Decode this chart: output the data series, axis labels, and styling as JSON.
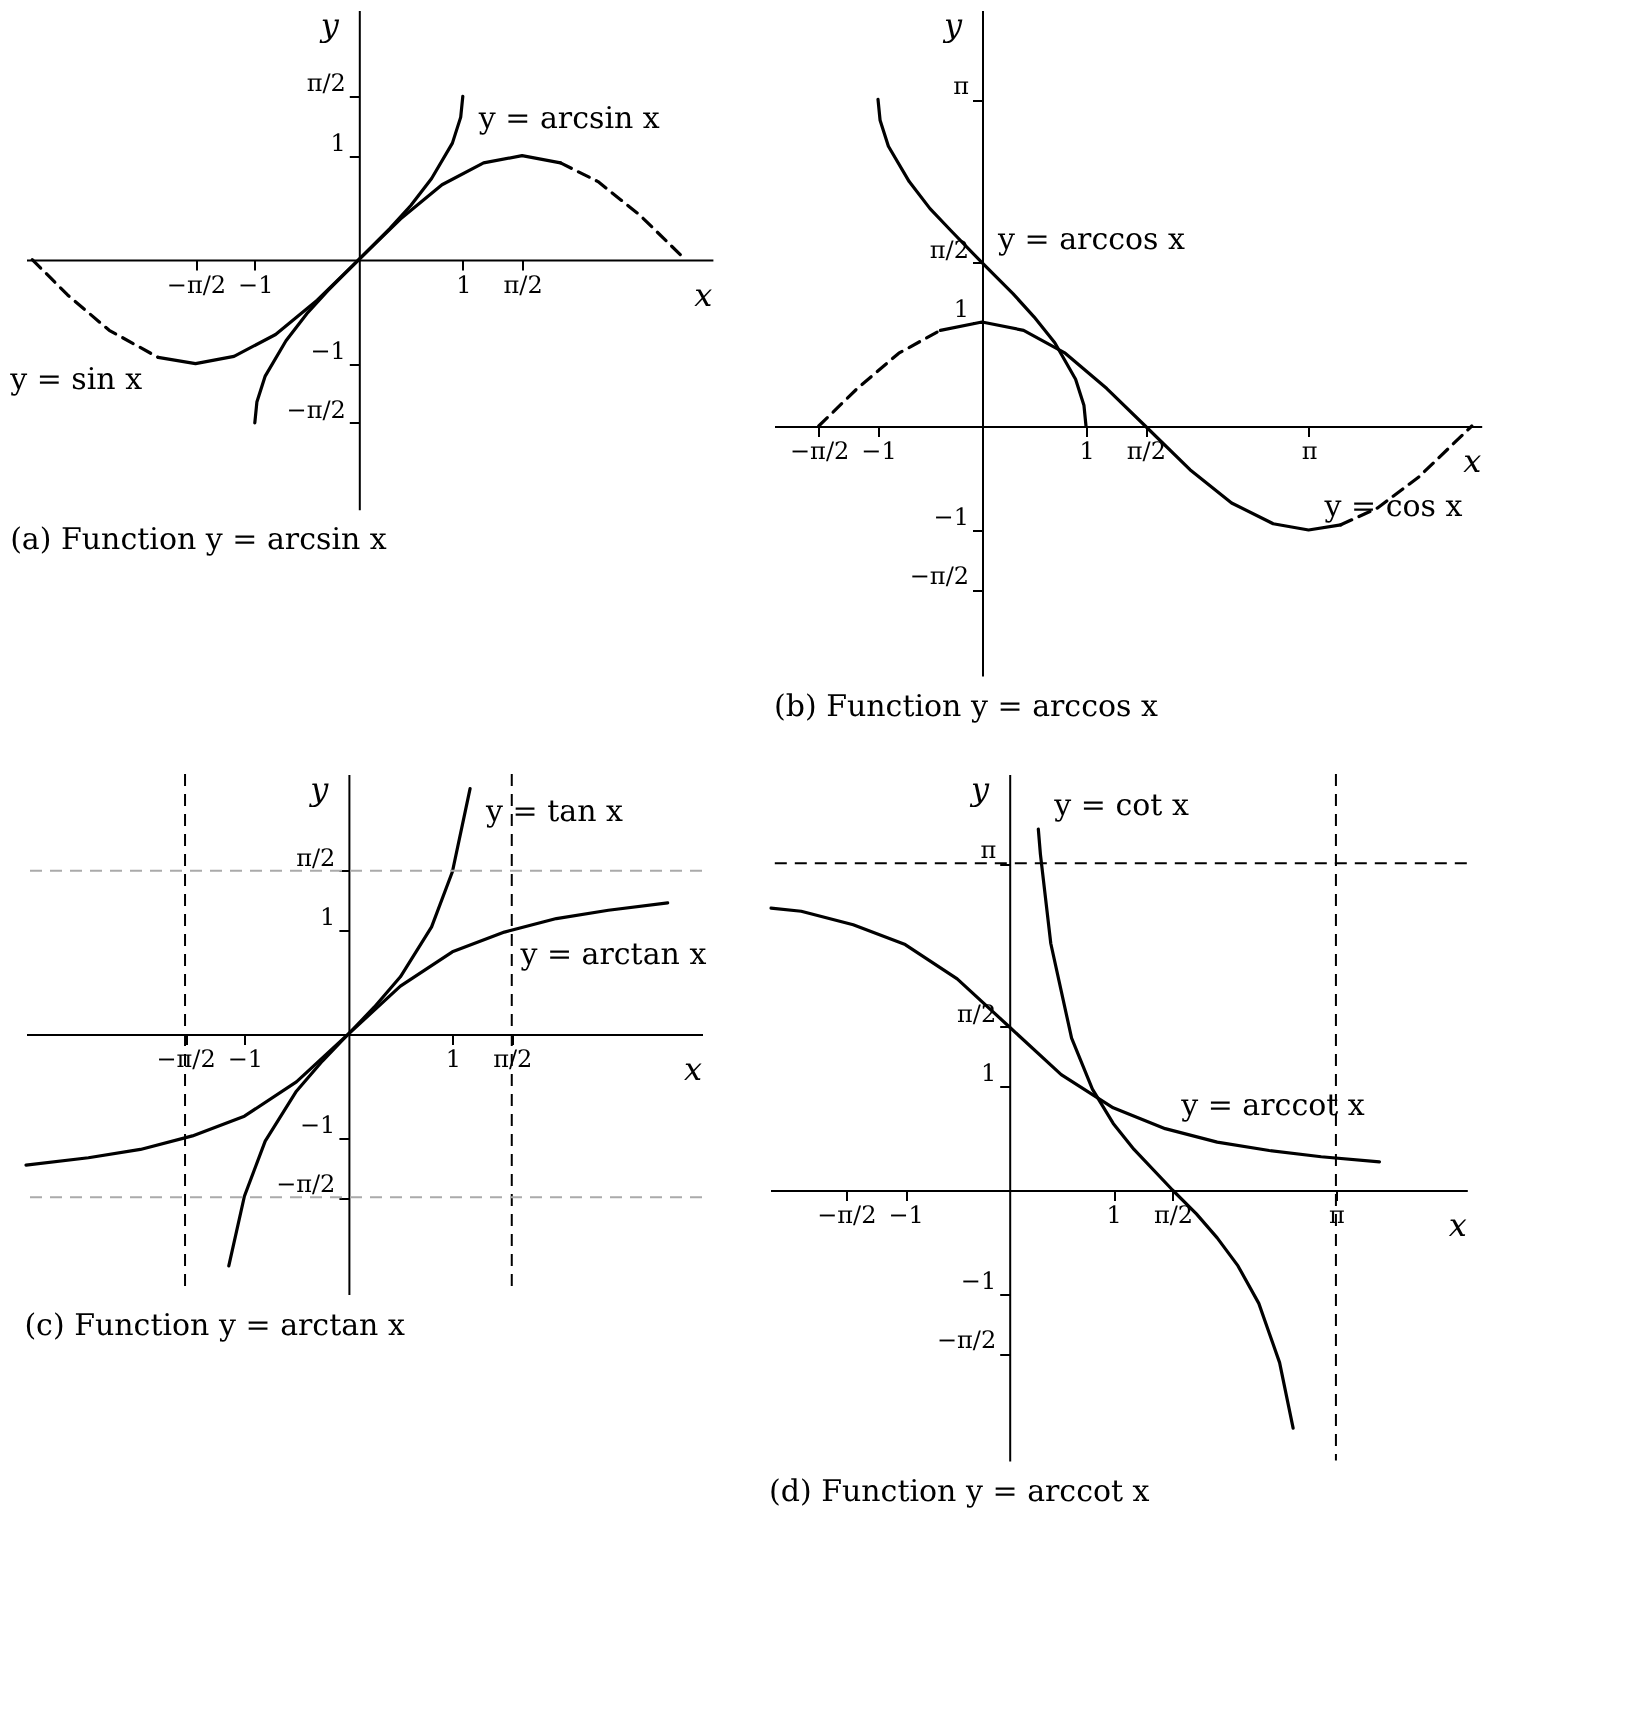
{
  "chart_data": [
    {
      "type": "line",
      "title": "(a) Function y = arcsin x",
      "xlabel": "x",
      "ylabel": "y",
      "xlim": [
        -3.2,
        3.4
      ],
      "ylim": [
        -2.4,
        2.4
      ],
      "grid": false,
      "xticks": [
        {
          "value": -1.5708,
          "label": "−π/2"
        },
        {
          "value": -1,
          "label": "−1"
        },
        1,
        {
          "value": 1.5708,
          "label": "π/2"
        }
      ],
      "yticks": [
        {
          "value": 1.5708,
          "label": "π/2"
        },
        1,
        {
          "value": -1,
          "label": "−1"
        },
        {
          "value": -1.5708,
          "label": "−π/2"
        }
      ],
      "annotations": [
        {
          "text": "y = arcsin x",
          "x": 1,
          "y": 1.57
        },
        {
          "text": "y = sin x",
          "x": -1.93,
          "y": -0.94
        }
      ],
      "series": [
        {
          "color": "#000000",
          "line_style": "dashed",
          "x": [
            -3.14,
            -2.8,
            -2.4,
            -1.93
          ],
          "values": [
            0,
            -0.34,
            -0.68,
            -0.94
          ]
        },
        {
          "color": "#000000",
          "line_style": "solid",
          "x": [
            -1.93,
            -1.57,
            -1.2,
            -0.8,
            -0.4,
            0,
            0.4,
            0.8,
            1.2,
            1.57,
            1.94
          ],
          "values": [
            -0.94,
            -1,
            -0.93,
            -0.72,
            -0.39,
            0,
            0.39,
            0.72,
            0.93,
            1,
            0.93
          ]
        },
        {
          "color": "#000000",
          "line_style": "dashed",
          "x": [
            1.94,
            2.3,
            2.7,
            3.14
          ],
          "values": [
            0.93,
            0.75,
            0.43,
            0
          ]
        },
        {
          "color": "#000000",
          "line_style": "solid",
          "x": [
            -1,
            -0.98,
            -0.9,
            -0.7,
            -0.5,
            -0.3,
            0,
            0.3,
            0.5,
            0.7,
            0.9,
            0.98,
            1
          ],
          "values": [
            -1.57,
            -1.37,
            -1.12,
            -0.78,
            -0.52,
            -0.3,
            0,
            0.3,
            0.52,
            0.78,
            1.12,
            1.37,
            1.57
          ]
        }
      ]
    },
    {
      "type": "line",
      "title": "(b) Function y = arccos x",
      "xlabel": "x",
      "ylabel": "y",
      "xlim": [
        -2.0,
        4.8
      ],
      "ylim": [
        -2.4,
        4.0
      ],
      "grid": false,
      "xticks": [
        {
          "value": -1.5708,
          "label": "−π/2"
        },
        {
          "value": -1,
          "label": "−1"
        },
        1,
        {
          "value": 1.5708,
          "label": "π/2"
        },
        {
          "value": 3.1416,
          "label": "π"
        }
      ],
      "yticks": [
        {
          "value": 3.1416,
          "label": "π"
        },
        {
          "value": 1.5708,
          "label": "π/2"
        },
        1,
        {
          "value": -1,
          "label": "−1"
        },
        {
          "value": -1.5708,
          "label": "−π/2"
        }
      ],
      "annotations": [
        {
          "text": "y = arccos x",
          "x": 0,
          "y": 1.57
        },
        {
          "text": "y = cos x",
          "x": 3.14,
          "y": -1
        }
      ],
      "series": [
        {
          "color": "#000000",
          "line_style": "dashed",
          "x": [
            -1.57,
            -1.2,
            -0.8,
            -0.4
          ],
          "values": [
            0,
            0.36,
            0.7,
            0.92
          ]
        },
        {
          "color": "#000000",
          "line_style": "solid",
          "x": [
            -0.4,
            0,
            0.4,
            0.8,
            1.2,
            1.57,
            2.0,
            2.4,
            2.8,
            3.14,
            3.45
          ],
          "values": [
            0.92,
            1,
            0.92,
            0.7,
            0.36,
            0,
            -0.42,
            -0.74,
            -0.94,
            -1,
            -0.95
          ]
        },
        {
          "color": "#000000",
          "line_style": "dashed",
          "x": [
            3.45,
            3.8,
            4.2,
            4.71
          ],
          "values": [
            -0.95,
            -0.79,
            -0.49,
            0
          ]
        },
        {
          "color": "#000000",
          "line_style": "solid",
          "x": [
            -1,
            -0.98,
            -0.9,
            -0.7,
            -0.5,
            -0.3,
            0,
            0.3,
            0.5,
            0.7,
            0.9,
            0.98,
            1
          ],
          "values": [
            3.14,
            2.94,
            2.69,
            2.35,
            2.09,
            1.88,
            1.57,
            1.27,
            1.05,
            0.8,
            0.45,
            0.2,
            0
          ]
        }
      ]
    },
    {
      "type": "line",
      "title": "(c) Function y = arctan x",
      "xlabel": "x",
      "ylabel": "y",
      "xlim": [
        -3.1,
        3.4
      ],
      "ylim": [
        -2.5,
        2.5
      ],
      "grid": false,
      "xticks": [
        {
          "value": -1.5708,
          "label": "−π/2"
        },
        {
          "value": -1,
          "label": "−1"
        },
        1,
        {
          "value": 1.5708,
          "label": "π/2"
        }
      ],
      "yticks": [
        {
          "value": 1.5708,
          "label": "π/2"
        },
        1,
        {
          "value": -1,
          "label": "−1"
        },
        {
          "value": -1.5708,
          "label": "−π/2"
        }
      ],
      "annotations": [
        {
          "text": "y = tan x",
          "x": 1.17,
          "y": 2.36
        },
        {
          "text": "y = arctan x",
          "x": 1.5,
          "y": 0.98
        }
      ],
      "ref_lines": [
        {
          "axis": "x",
          "value": -1.5708,
          "color": "#000000",
          "line_style": "dashed"
        },
        {
          "axis": "x",
          "value": 1.5708,
          "color": "#000000",
          "line_style": "dashed"
        },
        {
          "axis": "y",
          "value": 1.5708,
          "color": "#aaaaaa",
          "line_style": "dashed"
        },
        {
          "axis": "y",
          "value": -1.5708,
          "color": "#aaaaaa",
          "line_style": "dashed"
        }
      ],
      "series": [
        {
          "color": "#000000",
          "line_style": "solid",
          "x": [
            -1.15,
            -1.0,
            -0.8,
            -0.5,
            -0.25,
            0,
            0.25,
            0.5,
            0.8,
            1.0,
            1.17
          ],
          "values": [
            -2.23,
            -1.56,
            -1.03,
            -0.55,
            -0.26,
            0,
            0.26,
            0.55,
            1.03,
            1.56,
            2.36
          ]
        },
        {
          "color": "#000000",
          "line_style": "solid",
          "x": [
            -3.1,
            -2.5,
            -2,
            -1.5,
            -1,
            -0.5,
            0,
            0.5,
            1,
            1.5,
            2,
            2.5,
            3.07
          ],
          "values": [
            -1.26,
            -1.19,
            -1.11,
            -0.98,
            -0.79,
            -0.46,
            0,
            0.46,
            0.79,
            0.98,
            1.11,
            1.19,
            1.26
          ]
        }
      ]
    },
    {
      "type": "line",
      "title": "(d) Function y = arccot x",
      "xlabel": "x",
      "ylabel": "y",
      "xlim": [
        -2.3,
        4.4
      ],
      "ylim": [
        -2.6,
        4.0
      ],
      "grid": false,
      "xticks": [
        {
          "value": -1.5708,
          "label": "−π/2"
        },
        {
          "value": -1,
          "label": "−1"
        },
        1,
        {
          "value": 1.5708,
          "label": "π/2"
        },
        {
          "value": 3.1416,
          "label": "π"
        }
      ],
      "yticks": [
        {
          "value": 3.1416,
          "label": "π"
        },
        {
          "value": 1.5708,
          "label": "π/2"
        },
        1,
        {
          "value": -1,
          "label": "−1"
        },
        {
          "value": -1.5708,
          "label": "−π/2"
        }
      ],
      "annotations": [
        {
          "text": "y = cot x",
          "x": 0.28,
          "y": 3.47
        },
        {
          "text": "y = arccot x",
          "x": 1.5,
          "y": 0.59
        }
      ],
      "ref_lines": [
        {
          "axis": "y",
          "value": 3.1416,
          "color": "#000000",
          "line_style": "dashed"
        },
        {
          "axis": "x",
          "value": 3.1416,
          "color": "#000000",
          "line_style": "dashed"
        }
      ],
      "series": [
        {
          "color": "#000000",
          "line_style": "solid",
          "x": [
            0.28,
            0.3,
            0.4,
            0.6,
            0.8,
            1.0,
            1.2,
            1.57,
            1.8,
            2.0,
            2.2,
            2.4,
            2.6,
            2.73
          ],
          "values": [
            3.47,
            3.23,
            2.37,
            1.46,
            0.97,
            0.64,
            0.39,
            0,
            -0.23,
            -0.46,
            -0.73,
            -1.09,
            -1.66,
            -2.29
          ]
        },
        {
          "color": "#000000",
          "line_style": "solid",
          "x": [
            -2.29,
            -2,
            -1.5,
            -1,
            -0.5,
            0,
            0.5,
            1,
            1.5,
            2,
            2.5,
            3,
            3.56
          ],
          "values": [
            2.71,
            2.68,
            2.55,
            2.36,
            2.03,
            1.57,
            1.11,
            0.79,
            0.59,
            0.46,
            0.38,
            0.32,
            0.27
          ]
        }
      ]
    }
  ]
}
